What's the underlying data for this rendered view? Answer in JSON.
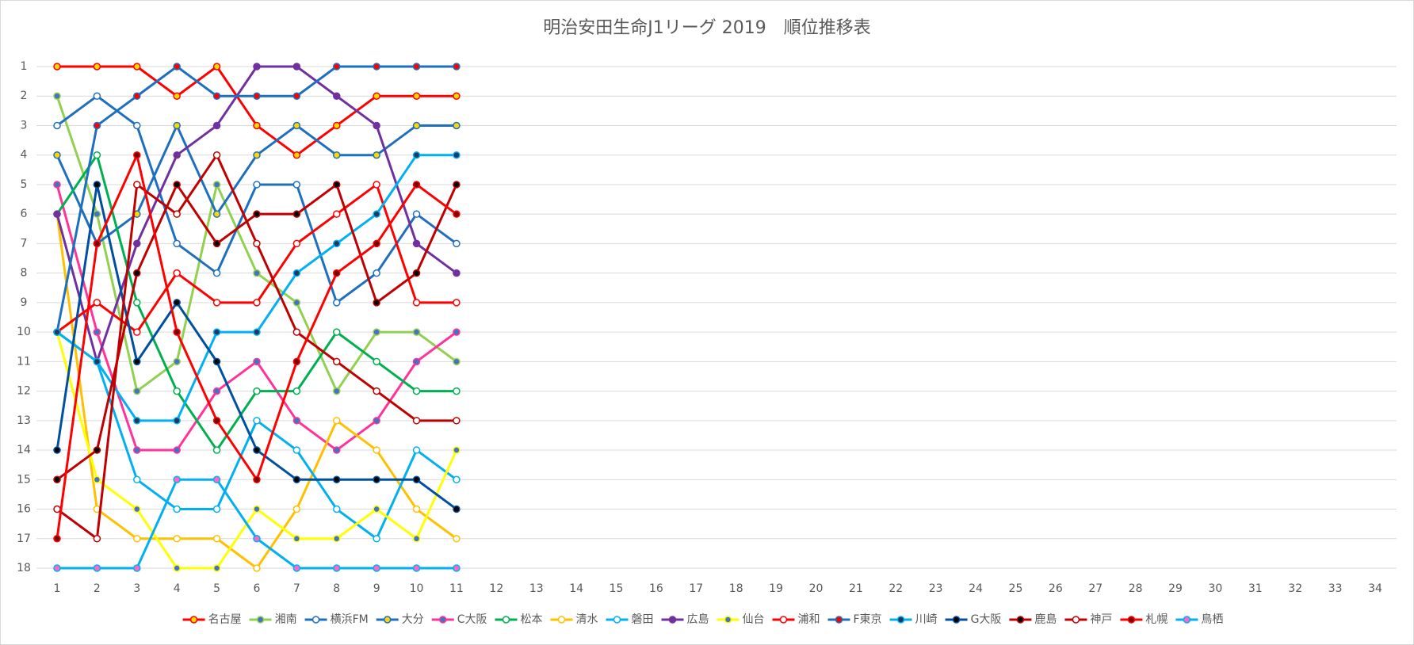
{
  "chart_data": {
    "type": "line",
    "title": "明治安田生命J1リーグ 2019　順位推移表",
    "x": [
      1,
      2,
      3,
      4,
      5,
      6,
      7,
      8,
      9,
      10,
      11
    ],
    "xlim": [
      1,
      34
    ],
    "xticks": [
      1,
      2,
      3,
      4,
      5,
      6,
      7,
      8,
      9,
      10,
      11,
      12,
      13,
      14,
      15,
      16,
      17,
      18,
      19,
      20,
      21,
      22,
      23,
      24,
      25,
      26,
      27,
      28,
      29,
      30,
      31,
      32,
      33,
      34
    ],
    "ylim": [
      1,
      18
    ],
    "yticks": [
      1,
      2,
      3,
      4,
      5,
      6,
      7,
      8,
      9,
      10,
      11,
      12,
      13,
      14,
      15,
      16,
      17,
      18
    ],
    "y_inverted": true,
    "grid": true,
    "legend": "bottom",
    "series": [
      {
        "name": "名古屋",
        "color": "#ff0000",
        "marker_color": "#ffd700",
        "values": [
          1,
          1,
          1,
          2,
          1,
          3,
          4,
          3,
          2,
          2,
          2
        ]
      },
      {
        "name": "湘南",
        "color": "#92d050",
        "marker_color": "#4472c4",
        "values": [
          2,
          6,
          12,
          11,
          5,
          8,
          9,
          12,
          10,
          10,
          11
        ]
      },
      {
        "name": "横浜FM",
        "color": "#1f6fbf",
        "marker_color": "#ffffff",
        "values": [
          3,
          2,
          3,
          7,
          8,
          5,
          5,
          9,
          8,
          6,
          7
        ]
      },
      {
        "name": "大分",
        "color": "#1f6fbf",
        "marker_color": "#ffd700",
        "values": [
          4,
          7,
          6,
          3,
          6,
          4,
          3,
          4,
          4,
          3,
          3
        ]
      },
      {
        "name": "C大阪",
        "color": "#ff3399",
        "marker_color": "#4472c4",
        "values": [
          5,
          10,
          14,
          14,
          12,
          11,
          13,
          14,
          13,
          11,
          10
        ]
      },
      {
        "name": "松本",
        "color": "#00b050",
        "marker_color": "#ffffff",
        "values": [
          6,
          4,
          9,
          12,
          14,
          12,
          12,
          10,
          11,
          12,
          12
        ]
      },
      {
        "name": "清水",
        "color": "#ffc000",
        "marker_color": "#ffffff",
        "values": [
          6,
          16,
          17,
          17,
          17,
          18,
          16,
          13,
          14,
          16,
          17
        ]
      },
      {
        "name": "磐田",
        "color": "#00b0f0",
        "marker_color": "#ffffff",
        "values": [
          10,
          11,
          15,
          16,
          16,
          13,
          14,
          16,
          17,
          14,
          15
        ]
      },
      {
        "name": "広島",
        "color": "#7030a0",
        "marker_color": "#7030a0",
        "values": [
          6,
          11,
          7,
          4,
          3,
          1,
          1,
          2,
          3,
          7,
          8
        ]
      },
      {
        "name": "仙台",
        "color": "#ffff00",
        "marker_color": "#4472c4",
        "values": [
          10,
          15,
          16,
          18,
          18,
          16,
          17,
          17,
          16,
          17,
          14
        ]
      },
      {
        "name": "浦和",
        "color": "#ff0000",
        "marker_color": "#ffffff",
        "values": [
          10,
          9,
          10,
          8,
          9,
          9,
          7,
          6,
          5,
          9,
          9
        ]
      },
      {
        "name": "F東京",
        "color": "#1f6fbf",
        "marker_color": "#ff0000",
        "values": [
          10,
          3,
          2,
          1,
          2,
          2,
          2,
          1,
          1,
          1,
          1
        ]
      },
      {
        "name": "川崎",
        "color": "#00b0f0",
        "marker_color": "#1f3864",
        "values": [
          10,
          11,
          13,
          13,
          10,
          10,
          8,
          7,
          6,
          4,
          4
        ]
      },
      {
        "name": "G大阪",
        "color": "#0050a0",
        "marker_color": "#000000",
        "values": [
          14,
          5,
          11,
          9,
          11,
          14,
          15,
          15,
          15,
          15,
          16
        ]
      },
      {
        "name": "鹿島",
        "color": "#c00000",
        "marker_color": "#000000",
        "values": [
          15,
          14,
          8,
          5,
          7,
          6,
          6,
          5,
          9,
          8,
          5
        ]
      },
      {
        "name": "神戸",
        "color": "#c00000",
        "marker_color": "#ffffff",
        "values": [
          16,
          17,
          5,
          6,
          4,
          7,
          10,
          11,
          12,
          13,
          13
        ]
      },
      {
        "name": "札幌",
        "color": "#ff0000",
        "marker_color": "#7b0000",
        "values": [
          17,
          7,
          4,
          10,
          13,
          15,
          11,
          8,
          7,
          5,
          6
        ]
      },
      {
        "name": "鳥栖",
        "color": "#00b0f0",
        "marker_color": "#ff66cc",
        "values": [
          18,
          18,
          18,
          15,
          15,
          17,
          18,
          18,
          18,
          18,
          18
        ]
      }
    ]
  }
}
